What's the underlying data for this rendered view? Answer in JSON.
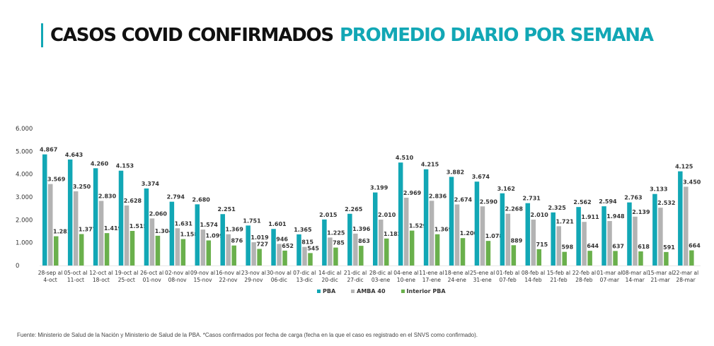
{
  "title": {
    "main": "CASOS COVID CONFIRMADOS",
    "accent": "PROMEDIO DIARIO POR SEMANA"
  },
  "colors": {
    "accent": "#12a7b5",
    "PBA": "#12a7b5",
    "AMBA 40": "#b3b3b3",
    "Interior PBA": "#6ab04c"
  },
  "chart_data": {
    "type": "bar",
    "title": "CASOS COVID CONFIRMADOS PROMEDIO DIARIO POR SEMANA",
    "xlabel": "",
    "ylabel": "",
    "ylim": [
      0,
      6000
    ],
    "yticks": [
      0,
      1000,
      2000,
      3000,
      4000,
      5000,
      6000
    ],
    "ytick_labels": [
      "0",
      "1.000",
      "2.000",
      "3.000",
      "4.000",
      "5.000",
      "6.000"
    ],
    "grid": false,
    "legend_position": "bottom-center",
    "categories": [
      [
        "28-sep al",
        "4-oct"
      ],
      [
        "05-oct al",
        "11-oct"
      ],
      [
        "12-oct al",
        "18-oct"
      ],
      [
        "19-oct al",
        "25-oct"
      ],
      [
        "26-oct al",
        "01-nov"
      ],
      [
        "02-nov al",
        "08-nov"
      ],
      [
        "09-nov al",
        "15-nov"
      ],
      [
        "16-nov al",
        "22-nov"
      ],
      [
        "23-nov al",
        "29-nov"
      ],
      [
        "30-nov al",
        "06-dic"
      ],
      [
        "07-dic al",
        "13-dic"
      ],
      [
        "14-dic al",
        "20-dic"
      ],
      [
        "21-dic al",
        "27-dic"
      ],
      [
        "28-dic al",
        "03-ene"
      ],
      [
        "04-ene al",
        "10-ene"
      ],
      [
        "11-ene al",
        "17-ene"
      ],
      [
        "18-ene al",
        "24-ene"
      ],
      [
        "25-ene al",
        "31-ene"
      ],
      [
        "01-feb al",
        "07-feb"
      ],
      [
        "08-feb al",
        "14-feb"
      ],
      [
        "15-feb al",
        "21-feb"
      ],
      [
        "22-feb al",
        "28-feb"
      ],
      [
        "01-mar al",
        "07-mar"
      ],
      [
        "08-mar al",
        "14-mar"
      ],
      [
        "15-mar al",
        "21-mar"
      ],
      [
        "22-mar al",
        "28-mar"
      ]
    ],
    "series": [
      {
        "name": "PBA",
        "values": [
          4867,
          4643,
          4260,
          4153,
          3374,
          2794,
          2680,
          2251,
          1751,
          1601,
          1365,
          2015,
          2265,
          3199,
          4510,
          4215,
          3882,
          3674,
          3162,
          2731,
          2325,
          2562,
          2594,
          2763,
          3133,
          4125
        ]
      },
      {
        "name": "AMBA 40",
        "values": [
          3569,
          3250,
          2830,
          2628,
          2060,
          1631,
          1574,
          1369,
          1019,
          946,
          815,
          1225,
          1396,
          2010,
          2969,
          2836,
          2674,
          2590,
          2268,
          2010,
          1721,
          1911,
          1948,
          2139,
          2532,
          3450
        ]
      },
      {
        "name": "Interior PBA",
        "values": [
          1281,
          1377,
          1419,
          1515,
          1304,
          1158,
          1099,
          876,
          727,
          652,
          545,
          785,
          863,
          1182,
          1529,
          1369,
          1200,
          1078,
          889,
          715,
          598,
          644,
          637,
          618,
          591,
          664
        ]
      }
    ]
  },
  "legend": [
    {
      "label": "PBA"
    },
    {
      "label": "AMBA 40"
    },
    {
      "label": "Interior PBA"
    }
  ],
  "footnote": "Fuente: Ministerio de Salud de la Nación y Ministerio de Salud de la PBA. *Casos confirmados por fecha de carga (fecha en la que el caso es registrado en el SNVS como confirmado)."
}
